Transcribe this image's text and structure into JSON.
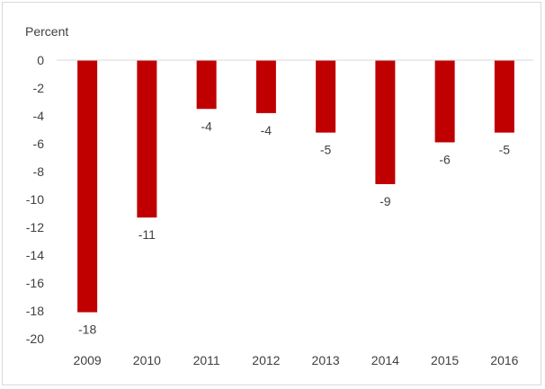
{
  "chart_data": {
    "type": "bar",
    "unit_label": "Percent",
    "categories": [
      "2009",
      "2010",
      "2011",
      "2012",
      "2013",
      "2014",
      "2015",
      "2016"
    ],
    "values": [
      -18.1,
      -11.3,
      -3.5,
      -3.8,
      -5.2,
      -8.9,
      -5.9,
      -5.2
    ],
    "data_labels": [
      "-18",
      "-11",
      "-4",
      "-4",
      "-5",
      "-9",
      "-6",
      "-5"
    ],
    "y_ticks": [
      "0",
      "-2",
      "-4",
      "-6",
      "-8",
      "-10",
      "-12",
      "-14",
      "-16",
      "-18",
      "-20"
    ],
    "ylim": [
      -20,
      0
    ],
    "grid": false,
    "legend": "none",
    "bar_color": "#c00000",
    "axis_color": "#d9d9d9",
    "text_color": "#404040"
  }
}
